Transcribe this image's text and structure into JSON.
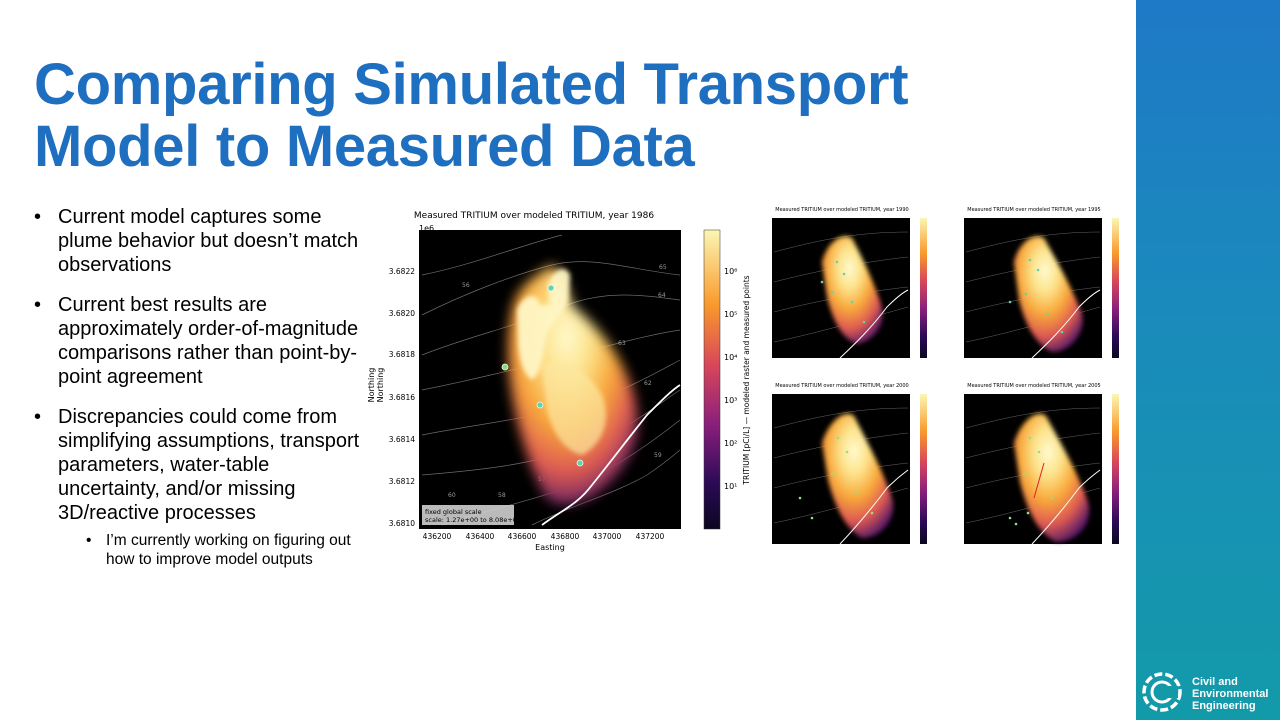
{
  "slide": {
    "title_lines": [
      "Comparing Simulated Transport",
      "Model to Measured Data"
    ],
    "bullets": [
      "Current model captures some plume behavior but doesn’t match observations",
      "Current best results are approximately order-of-magnitude comparisons rather than point-by-point agreement",
      "Discrepancies could come from simplifying assumptions, transport parameters, water-table uncertainty, and/or missing 3D/reactive processes"
    ],
    "sub_bullets": [
      "I’m currently working on figuring out how to improve model outputs"
    ]
  },
  "branding": {
    "line1": "Civil and",
    "line2": "Environmental",
    "line3": "Engineering"
  },
  "colors": {
    "title": "#1e6fbf",
    "band_top": "#1e79c6",
    "band_bottom": "#139aa9",
    "map_bg": "#000000"
  },
  "main_map": {
    "title": "Measured TRITIUM over modeled TRITIUM, year 1986",
    "offset_label": "1e6",
    "xlabel": "Easting",
    "ylabel": "Northing",
    "x_ticks": [
      "436200",
      "436400",
      "436600",
      "436800",
      "437000",
      "437200"
    ],
    "y_ticks": [
      "3.6822",
      "3.6820",
      "3.6818",
      "3.6816",
      "3.6814",
      "3.6812",
      "3.6810"
    ],
    "colorbar_label": "TRITIUM [pCi/L] — modeled raster and measured points",
    "colorbar_ticks": [
      "10⁶",
      "10⁵",
      "10⁴",
      "10³",
      "10²",
      "10¹"
    ],
    "scale_note_line1": "fixed global scale",
    "scale_note_line2": "scale: 1.27e+00 to 8.08e+06",
    "contour_labels": [
      "65",
      "64",
      "63",
      "62",
      "60",
      "59",
      "58",
      "57",
      "56"
    ]
  },
  "small_maps": [
    {
      "title": "Measured TRITIUM over modeled TRITIUM, year 1990"
    },
    {
      "title": "Measured TRITIUM over modeled TRITIUM, year 1995"
    },
    {
      "title": "Measured TRITIUM over modeled TRITIUM, year 2000"
    },
    {
      "title": "Measured TRITIUM over modeled TRITIUM, year 2005"
    }
  ]
}
